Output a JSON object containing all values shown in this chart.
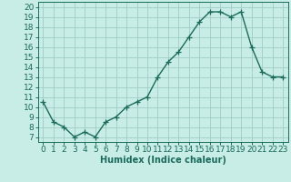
{
  "x": [
    0,
    1,
    2,
    3,
    4,
    5,
    6,
    7,
    8,
    9,
    10,
    11,
    12,
    13,
    14,
    15,
    16,
    17,
    18,
    19,
    20,
    21,
    22,
    23
  ],
  "y": [
    10.5,
    8.5,
    8.0,
    7.0,
    7.5,
    7.0,
    8.5,
    9.0,
    10.0,
    10.5,
    11.0,
    13.0,
    14.5,
    15.5,
    17.0,
    18.5,
    19.5,
    19.5,
    19.0,
    19.5,
    16.0,
    13.5,
    13.0,
    13.0
  ],
  "line_color": "#1a6b5a",
  "marker": "+",
  "marker_size": 4,
  "bg_color": "#c8ece6",
  "grid_color": "#a0ccc6",
  "xlabel": "Humidex (Indice chaleur)",
  "xlim": [
    -0.5,
    23.5
  ],
  "ylim": [
    6.5,
    20.5
  ],
  "yticks": [
    7,
    8,
    9,
    10,
    11,
    12,
    13,
    14,
    15,
    16,
    17,
    18,
    19,
    20
  ],
  "xticks": [
    0,
    1,
    2,
    3,
    4,
    5,
    6,
    7,
    8,
    9,
    10,
    11,
    12,
    13,
    14,
    15,
    16,
    17,
    18,
    19,
    20,
    21,
    22,
    23
  ],
  "line_width": 1.0,
  "font_size": 6.5
}
